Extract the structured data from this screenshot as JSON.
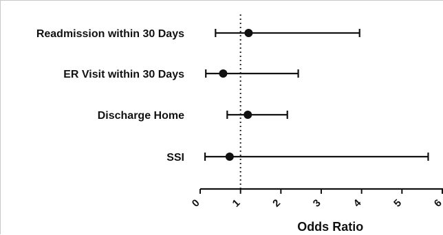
{
  "chart_data": {
    "type": "forest",
    "title": "",
    "xlabel": "Odds Ratio",
    "ylabel": "",
    "xlim": [
      0,
      6
    ],
    "x_ticks": [
      "0",
      "1",
      "2",
      "3",
      "4",
      "5",
      "6"
    ],
    "reference_line": 1,
    "grid": false,
    "legend": "none",
    "rows": [
      {
        "label": "Readmission within 30 Days",
        "or": 1.2,
        "ci_low": 0.38,
        "ci_high": 3.95
      },
      {
        "label": "ER Visit within 30 Days",
        "or": 0.57,
        "ci_low": 0.14,
        "ci_high": 2.43
      },
      {
        "label": "Discharge Home",
        "or": 1.18,
        "ci_low": 0.67,
        "ci_high": 2.16
      },
      {
        "label": "SSI",
        "or": 0.73,
        "ci_low": 0.12,
        "ci_high": 5.65
      }
    ],
    "colors": {
      "marks": "#111111",
      "reference": "#222222"
    }
  }
}
